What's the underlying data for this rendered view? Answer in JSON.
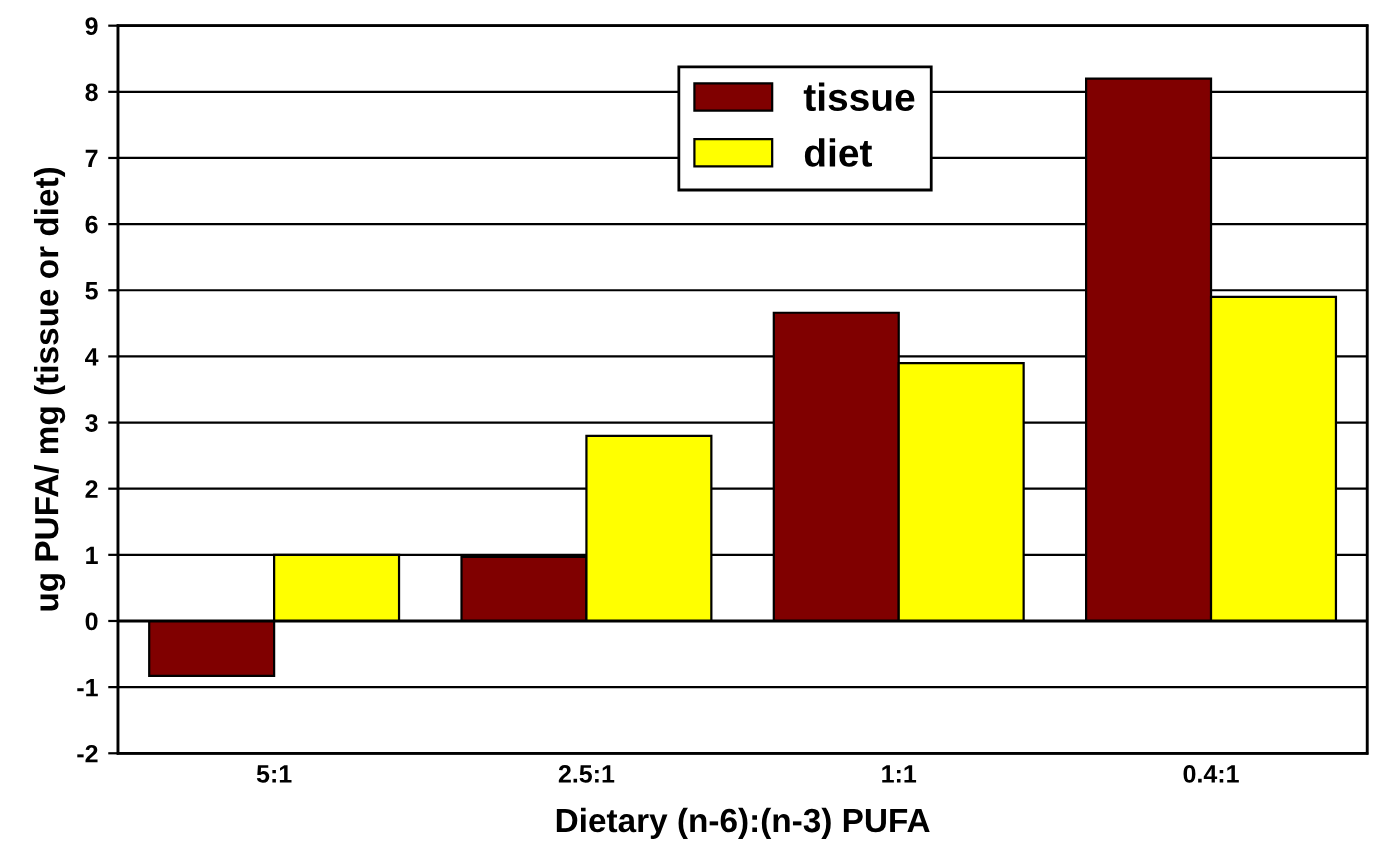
{
  "chart_data": {
    "type": "bar",
    "xlabel": "Dietary (n-6):(n-3) PUFA",
    "ylabel": "ug PUFA/ mg (tissue or diet)",
    "categories": [
      "5:1",
      "2.5:1",
      "1:1",
      "0.4:1"
    ],
    "series": [
      {
        "name": "tissue",
        "color": "#800000",
        "values": [
          -0.83,
          0.97,
          4.66,
          8.2
        ]
      },
      {
        "name": "diet",
        "color": "#ffff00",
        "values": [
          1.0,
          2.8,
          3.9,
          4.9
        ]
      }
    ],
    "ylim": [
      -2,
      9
    ],
    "yticks": [
      -2,
      -1,
      0,
      1,
      2,
      3,
      4,
      5,
      6,
      7,
      8,
      9
    ],
    "grid": "y",
    "legend": "top"
  }
}
